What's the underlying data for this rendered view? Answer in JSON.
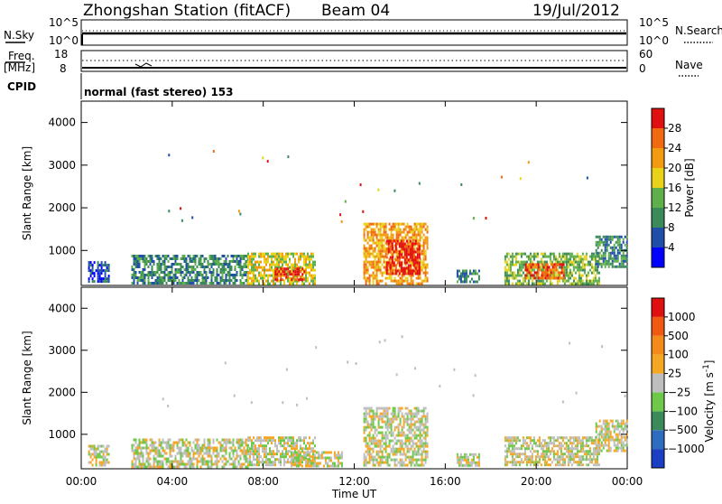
{
  "header": {
    "station": "Zhongshan Station (fitACF)",
    "beam": "Beam 04",
    "date": "19/Jul/2012"
  },
  "top_panels": {
    "nsky_label": "N.Sky",
    "nsky_ticks": [
      "10^5",
      "10^0"
    ],
    "nsearch_label": "N.Search",
    "nsearch_ticks": [
      "10^5",
      "10^0"
    ],
    "freq_label_top": "Freq.",
    "freq_label_unit": "[MHz]",
    "freq_ticks": [
      "18",
      "8"
    ],
    "nave_label": "Nave",
    "nave_ticks": [
      "60",
      "0"
    ],
    "cpid_label": "CPID",
    "cpid_text": "normal (fast stereo) 153"
  },
  "chart_data": [
    {
      "type": "heatmap",
      "title": "",
      "xlabel": "Time UT",
      "ylabel": "Slant Range [km]",
      "x_ticks": [
        "00:00",
        "04:00",
        "08:00",
        "12:00",
        "16:00",
        "20:00",
        "00:00"
      ],
      "x_range_hours": [
        0,
        24
      ],
      "y_ticks": [
        "1000",
        "2000",
        "3000",
        "4000"
      ],
      "ylim": [
        180,
        4500
      ],
      "colorbar": {
        "label": "Power [dB]",
        "ticks": [
          "4",
          "8",
          "12",
          "16",
          "20",
          "24",
          "28"
        ],
        "range": [
          0,
          30
        ],
        "colors": [
          "#0000ff",
          "#1f4fa8",
          "#3a8a5a",
          "#5fb04a",
          "#e8d21a",
          "#f29a10",
          "#f26a10",
          "#e01010"
        ]
      },
      "echo_regions": [
        {
          "t_start": 0.3,
          "t_end": 1.2,
          "r_low": 250,
          "r_high": 750,
          "value": 6
        },
        {
          "t_start": 2.2,
          "t_end": 7.3,
          "r_low": 250,
          "r_high": 900,
          "value": 8
        },
        {
          "t_start": 7.3,
          "t_end": 10.3,
          "r_low": 250,
          "r_high": 950,
          "value": 16
        },
        {
          "t_start": 8.5,
          "t_end": 9.8,
          "r_low": 300,
          "r_high": 600,
          "value": 28
        },
        {
          "t_start": 12.4,
          "t_end": 15.2,
          "r_low": 250,
          "r_high": 1650,
          "value": 20
        },
        {
          "t_start": 13.4,
          "t_end": 14.9,
          "r_low": 450,
          "r_high": 1250,
          "value": 28
        },
        {
          "t_start": 16.5,
          "t_end": 17.5,
          "r_low": 250,
          "r_high": 550,
          "value": 8
        },
        {
          "t_start": 18.6,
          "t_end": 22.8,
          "r_low": 250,
          "r_high": 950,
          "value": 12
        },
        {
          "t_start": 19.5,
          "t_end": 21.2,
          "r_low": 350,
          "r_high": 700,
          "value": 24
        },
        {
          "t_start": 22.6,
          "t_end": 24.0,
          "r_low": 600,
          "r_high": 1350,
          "value": 8
        }
      ]
    },
    {
      "type": "heatmap",
      "title": "",
      "xlabel": "Time UT",
      "ylabel": "Slant Range [km]",
      "x_ticks": [
        "00:00",
        "04:00",
        "08:00",
        "12:00",
        "16:00",
        "20:00",
        "00:00"
      ],
      "x_range_hours": [
        0,
        24
      ],
      "y_ticks": [
        "1000",
        "2000",
        "3000",
        "4000"
      ],
      "ylim": [
        180,
        4500
      ],
      "colorbar": {
        "label_main": "Velocity",
        "label_unit": "[m s",
        "label_exp": "-1",
        "label_close": "]",
        "ticks": [
          "1000",
          "500",
          "100",
          "25",
          "−25",
          "−100",
          "−500",
          "−1000"
        ],
        "range": [
          -1000,
          1000
        ],
        "colors": [
          "#1a3fc4",
          "#2e6cc0",
          "#3a8a5a",
          "#6ec84a",
          "#bebebe",
          "#f5a623",
          "#f58a1a",
          "#ef5a10",
          "#e01010"
        ]
      },
      "echo_regions": [
        {
          "t_start": 0.3,
          "t_end": 1.2,
          "r_low": 250,
          "r_high": 750,
          "value": -100
        },
        {
          "t_start": 2.2,
          "t_end": 7.3,
          "r_low": 250,
          "r_high": 900,
          "value": -100
        },
        {
          "t_start": 7.3,
          "t_end": 10.3,
          "r_low": 250,
          "r_high": 950,
          "value": -100
        },
        {
          "t_start": 9.2,
          "t_end": 11.5,
          "r_low": 250,
          "r_high": 600,
          "value": 100
        },
        {
          "t_start": 12.4,
          "t_end": 15.2,
          "r_low": 250,
          "r_high": 1650,
          "value": -100
        },
        {
          "t_start": 16.5,
          "t_end": 17.5,
          "r_low": 250,
          "r_high": 550,
          "value": -100
        },
        {
          "t_start": 18.6,
          "t_end": 22.8,
          "r_low": 250,
          "r_high": 950,
          "value": -100
        },
        {
          "t_start": 22.6,
          "t_end": 24.0,
          "r_low": 600,
          "r_high": 1350,
          "value": 100
        }
      ]
    }
  ]
}
